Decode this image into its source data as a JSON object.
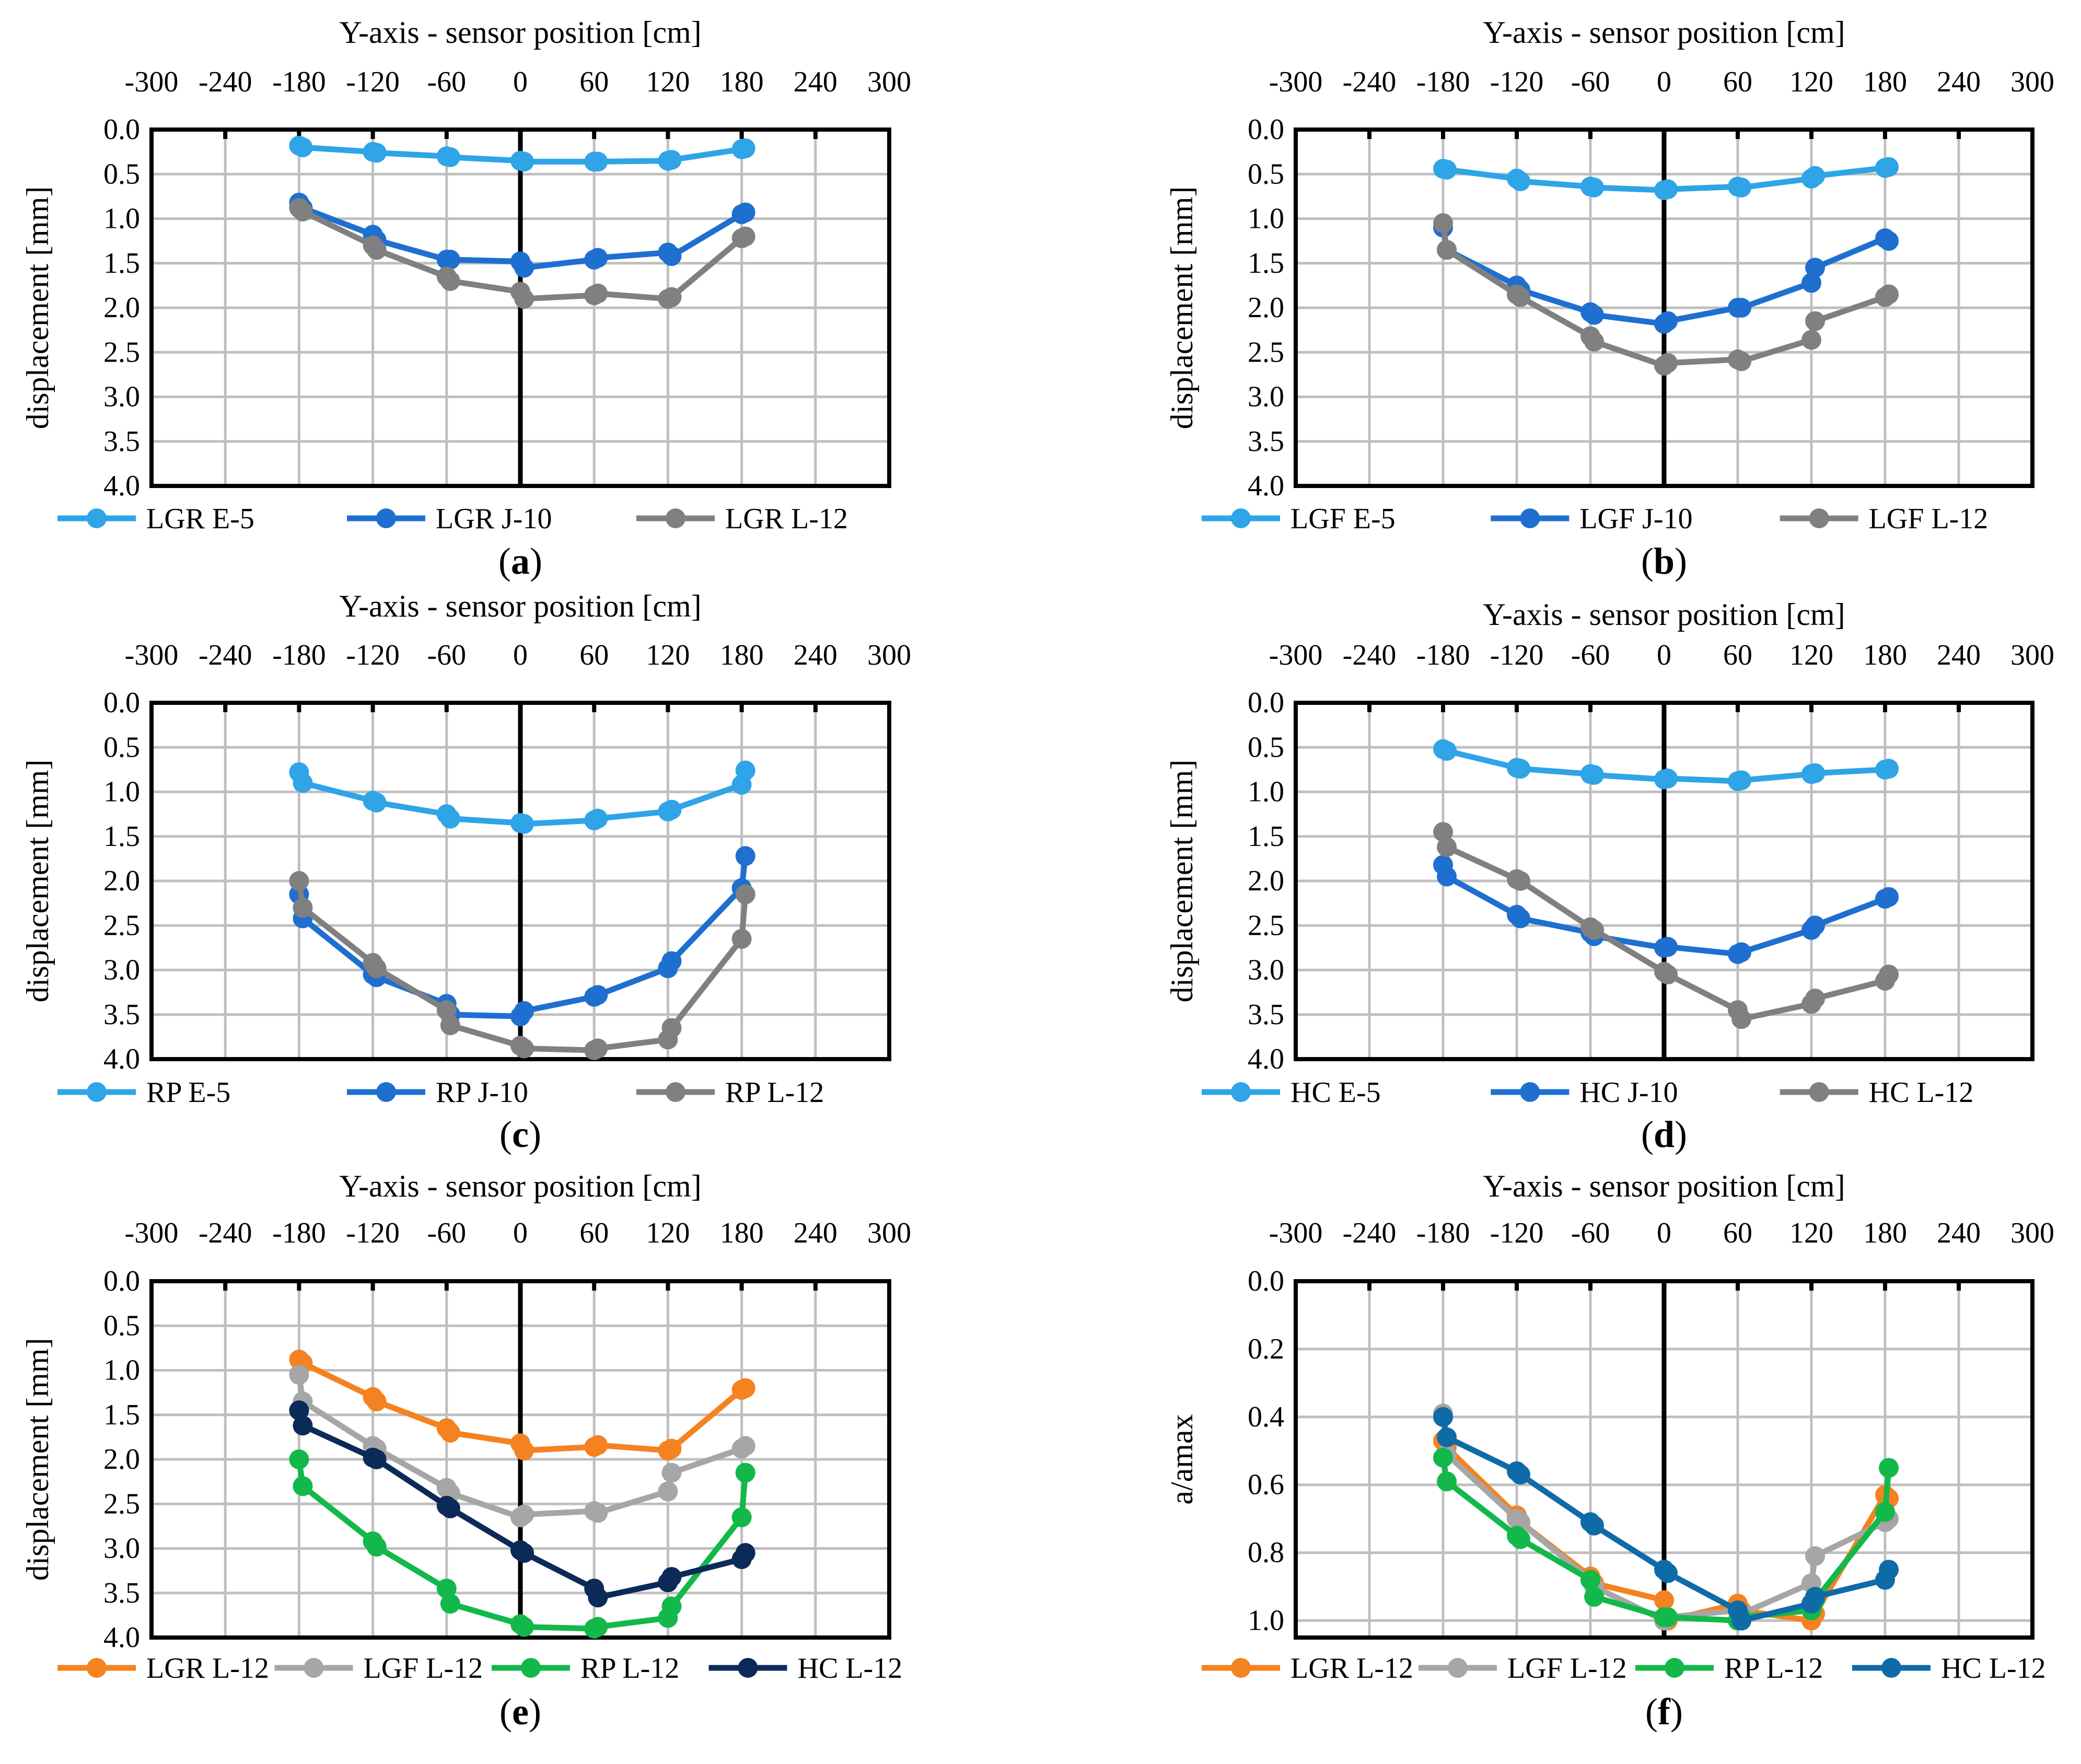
{
  "colors": {
    "light_blue": "#2fa4e7",
    "mid_blue": "#1f6fd0",
    "gray": "#808080",
    "orange": "#f58220",
    "light_gray": "#a6a6a6",
    "green": "#12b84a",
    "navy": "#0b2a57",
    "teal_blue": "#0f6ba8"
  },
  "chart_data": [
    {
      "type": "line",
      "panel": "a",
      "caption": "(a)",
      "caption_letter": "a",
      "title": "Y-axis - sensor position [cm]",
      "ylabel": "displacement [mm]",
      "xlim": [
        -300,
        300
      ],
      "ylim": [
        4.0,
        0.0
      ],
      "y_inverted": true,
      "xticks": [
        "-300",
        "-240",
        "-180",
        "-120",
        "-60",
        "0",
        "60",
        "120",
        "180",
        "240",
        "300"
      ],
      "yticks": [
        "0.0",
        "0.5",
        "1.0",
        "1.5",
        "2.0",
        "2.5",
        "3.0",
        "3.5",
        "4.0"
      ],
      "legend_position": "bottom",
      "series": [
        {
          "name": "LGR E-5",
          "color_key": "light_blue",
          "x": [
            -180,
            -177,
            -120,
            -117,
            -60,
            -57,
            0,
            3,
            60,
            63,
            120,
            123,
            180,
            183
          ],
          "values": [
            0.18,
            0.2,
            0.25,
            0.26,
            0.3,
            0.31,
            0.35,
            0.36,
            0.36,
            0.36,
            0.35,
            0.34,
            0.22,
            0.21
          ]
        },
        {
          "name": "LGR J-10",
          "color_key": "mid_blue",
          "x": [
            -180,
            -177,
            -120,
            -117,
            -60,
            -57,
            0,
            3,
            60,
            63,
            120,
            123,
            180,
            183
          ],
          "values": [
            0.82,
            0.88,
            1.18,
            1.24,
            1.46,
            1.46,
            1.48,
            1.55,
            1.46,
            1.44,
            1.38,
            1.42,
            0.95,
            0.93
          ]
        },
        {
          "name": "LGR L-12",
          "color_key": "gray",
          "x": [
            -180,
            -177,
            -120,
            -117,
            -60,
            -57,
            0,
            3,
            60,
            63,
            120,
            123,
            180,
            183
          ],
          "values": [
            0.88,
            0.92,
            1.3,
            1.35,
            1.65,
            1.7,
            1.82,
            1.9,
            1.86,
            1.84,
            1.9,
            1.88,
            1.22,
            1.2
          ]
        }
      ]
    },
    {
      "type": "line",
      "panel": "b",
      "caption": "(b)",
      "caption_letter": "b",
      "title": "Y-axis - sensor position [cm]",
      "ylabel": "displacement [mm]",
      "xlim": [
        -300,
        300
      ],
      "ylim": [
        4.0,
        0.0
      ],
      "y_inverted": true,
      "xticks": [
        "-300",
        "-240",
        "-180",
        "-120",
        "-60",
        "0",
        "60",
        "120",
        "180",
        "240",
        "300"
      ],
      "yticks": [
        "0.0",
        "0.5",
        "1.0",
        "1.5",
        "2.0",
        "2.5",
        "3.0",
        "3.5",
        "4.0"
      ],
      "legend_position": "bottom",
      "series": [
        {
          "name": "LGF E-5",
          "color_key": "light_blue",
          "x": [
            -180,
            -177,
            -120,
            -117,
            -60,
            -57,
            0,
            3,
            60,
            63,
            120,
            123,
            180,
            183
          ],
          "values": [
            0.44,
            0.45,
            0.55,
            0.58,
            0.64,
            0.65,
            0.68,
            0.67,
            0.64,
            0.65,
            0.55,
            0.52,
            0.43,
            0.42
          ]
        },
        {
          "name": "LGF J-10",
          "color_key": "mid_blue",
          "x": [
            -180,
            -177,
            -120,
            -117,
            -60,
            -57,
            0,
            3,
            60,
            63,
            120,
            123,
            180,
            183
          ],
          "values": [
            1.1,
            1.35,
            1.75,
            1.8,
            2.05,
            2.08,
            2.18,
            2.15,
            2.0,
            2.0,
            1.72,
            1.55,
            1.22,
            1.25
          ]
        },
        {
          "name": "LGF L-12",
          "color_key": "gray",
          "x": [
            -180,
            -177,
            -120,
            -117,
            -60,
            -57,
            0,
            3,
            60,
            63,
            120,
            123,
            180,
            183
          ],
          "values": [
            1.05,
            1.35,
            1.85,
            1.88,
            2.32,
            2.38,
            2.65,
            2.62,
            2.58,
            2.6,
            2.36,
            2.15,
            1.88,
            1.85
          ]
        }
      ]
    },
    {
      "type": "line",
      "panel": "c",
      "caption": "(c)",
      "caption_letter": "c",
      "title": "Y-axis - sensor position [cm]",
      "ylabel": "displacement [mm]",
      "xlim": [
        -300,
        300
      ],
      "ylim": [
        4.0,
        0.0
      ],
      "y_inverted": true,
      "xticks": [
        "-300",
        "-240",
        "-180",
        "-120",
        "-60",
        "0",
        "60",
        "120",
        "180",
        "240",
        "300"
      ],
      "yticks": [
        "0.0",
        "0.5",
        "1.0",
        "1.5",
        "2.0",
        "2.5",
        "3.0",
        "3.5",
        "4.0"
      ],
      "legend_position": "bottom",
      "series": [
        {
          "name": "RP E-5",
          "color_key": "light_blue",
          "x": [
            -180,
            -177,
            -120,
            -117,
            -60,
            -57,
            0,
            3,
            60,
            63,
            120,
            123,
            180,
            183
          ],
          "values": [
            0.78,
            0.9,
            1.1,
            1.12,
            1.25,
            1.3,
            1.35,
            1.36,
            1.32,
            1.3,
            1.22,
            1.2,
            0.92,
            0.76
          ]
        },
        {
          "name": "RP J-10",
          "color_key": "mid_blue",
          "x": [
            -180,
            -177,
            -120,
            -117,
            -60,
            -57,
            0,
            3,
            60,
            63,
            120,
            123,
            180,
            183
          ],
          "values": [
            2.15,
            2.42,
            3.05,
            3.08,
            3.38,
            3.5,
            3.52,
            3.46,
            3.3,
            3.28,
            2.98,
            2.9,
            2.08,
            1.72
          ]
        },
        {
          "name": "RP L-12",
          "color_key": "gray",
          "x": [
            -180,
            -177,
            -120,
            -117,
            -60,
            -57,
            0,
            3,
            60,
            63,
            120,
            123,
            180,
            183
          ],
          "values": [
            2.0,
            2.3,
            2.92,
            2.98,
            3.45,
            3.62,
            3.85,
            3.88,
            3.9,
            3.88,
            3.78,
            3.65,
            2.65,
            2.15
          ]
        }
      ]
    },
    {
      "type": "line",
      "panel": "d",
      "caption": "(d)",
      "caption_letter": "d",
      "title": "Y-axis - sensor position [cm]",
      "ylabel": "displacement [mm]",
      "xlim": [
        -300,
        300
      ],
      "ylim": [
        4.0,
        0.0
      ],
      "y_inverted": true,
      "xticks": [
        "-300",
        "-240",
        "-180",
        "-120",
        "-60",
        "0",
        "60",
        "120",
        "180",
        "240",
        "300"
      ],
      "yticks": [
        "0.0",
        "0.5",
        "1.0",
        "1.5",
        "2.0",
        "2.5",
        "3.0",
        "3.5",
        "4.0"
      ],
      "legend_position": "bottom",
      "series": [
        {
          "name": "HC E-5",
          "color_key": "light_blue",
          "x": [
            -180,
            -177,
            -120,
            -117,
            -60,
            -57,
            0,
            3,
            60,
            63,
            120,
            123,
            180,
            183
          ],
          "values": [
            0.52,
            0.54,
            0.73,
            0.74,
            0.8,
            0.81,
            0.86,
            0.85,
            0.88,
            0.87,
            0.8,
            0.79,
            0.75,
            0.74
          ]
        },
        {
          "name": "HC J-10",
          "color_key": "mid_blue",
          "x": [
            -180,
            -177,
            -120,
            -117,
            -60,
            -57,
            0,
            3,
            60,
            63,
            120,
            123,
            180,
            183
          ],
          "values": [
            1.82,
            1.95,
            2.38,
            2.42,
            2.58,
            2.62,
            2.75,
            2.74,
            2.82,
            2.8,
            2.55,
            2.5,
            2.2,
            2.18
          ]
        },
        {
          "name": "HC L-12",
          "color_key": "gray",
          "x": [
            -180,
            -177,
            -120,
            -117,
            -60,
            -57,
            0,
            3,
            60,
            63,
            120,
            123,
            180,
            183
          ],
          "values": [
            1.45,
            1.62,
            1.98,
            2.0,
            2.52,
            2.55,
            3.02,
            3.05,
            3.45,
            3.55,
            3.38,
            3.32,
            3.12,
            3.05
          ]
        }
      ]
    },
    {
      "type": "line",
      "panel": "e",
      "caption": "(e)",
      "caption_letter": "e",
      "title": "Y-axis - sensor position [cm]",
      "ylabel": "displacement [mm]",
      "xlim": [
        -300,
        300
      ],
      "ylim": [
        4.0,
        0.0
      ],
      "y_inverted": true,
      "xticks": [
        "-300",
        "-240",
        "-180",
        "-120",
        "-60",
        "0",
        "60",
        "120",
        "180",
        "240",
        "300"
      ],
      "yticks": [
        "0.0",
        "0.5",
        "1.0",
        "1.5",
        "2.0",
        "2.5",
        "3.0",
        "3.5",
        "4.0"
      ],
      "legend_position": "bottom",
      "series": [
        {
          "name": "LGR L-12",
          "color_key": "orange",
          "x": [
            -180,
            -177,
            -120,
            -117,
            -60,
            -57,
            0,
            3,
            60,
            63,
            120,
            123,
            180,
            183
          ],
          "values": [
            0.88,
            0.92,
            1.3,
            1.35,
            1.65,
            1.7,
            1.82,
            1.9,
            1.86,
            1.84,
            1.9,
            1.88,
            1.22,
            1.2
          ]
        },
        {
          "name": "LGF L-12",
          "color_key": "light_gray",
          "x": [
            -180,
            -177,
            -120,
            -117,
            -60,
            -57,
            0,
            3,
            60,
            63,
            120,
            123,
            180,
            183
          ],
          "values": [
            1.05,
            1.35,
            1.85,
            1.88,
            2.32,
            2.38,
            2.65,
            2.62,
            2.58,
            2.6,
            2.36,
            2.15,
            1.88,
            1.85
          ]
        },
        {
          "name": "RP L-12",
          "color_key": "green",
          "x": [
            -180,
            -177,
            -120,
            -117,
            -60,
            -57,
            0,
            3,
            60,
            63,
            120,
            123,
            180,
            183
          ],
          "values": [
            2.0,
            2.3,
            2.92,
            2.98,
            3.45,
            3.62,
            3.85,
            3.88,
            3.9,
            3.88,
            3.78,
            3.65,
            2.65,
            2.15
          ]
        },
        {
          "name": "HC L-12",
          "color_key": "navy",
          "x": [
            -180,
            -177,
            -120,
            -117,
            -60,
            -57,
            0,
            3,
            60,
            63,
            120,
            123,
            180,
            183
          ],
          "values": [
            1.45,
            1.62,
            1.98,
            2.0,
            2.52,
            2.55,
            3.02,
            3.05,
            3.45,
            3.55,
            3.38,
            3.32,
            3.12,
            3.05
          ]
        }
      ]
    },
    {
      "type": "line",
      "panel": "f",
      "caption": "(f)",
      "caption_letter": "f",
      "title": "Y-axis - sensor position [cm]",
      "ylabel": "a/amax",
      "xlim": [
        -300,
        300
      ],
      "ylim": [
        1.05,
        0.0
      ],
      "y_inverted": true,
      "xticks": [
        "-300",
        "-240",
        "-180",
        "-120",
        "-60",
        "0",
        "60",
        "120",
        "180",
        "240",
        "300"
      ],
      "yticks": [
        "0.0",
        "0.2",
        "0.4",
        "0.6",
        "0.8",
        "1.0"
      ],
      "ytick_values": [
        0.0,
        0.2,
        0.4,
        0.6,
        0.8,
        1.0
      ],
      "legend_position": "bottom",
      "series": [
        {
          "name": "LGR L-12",
          "color_key": "orange",
          "x": [
            -180,
            -177,
            -120,
            -117,
            -60,
            -57,
            0,
            3,
            60,
            63,
            120,
            123,
            180,
            183
          ],
          "values": [
            0.47,
            0.49,
            0.69,
            0.71,
            0.87,
            0.89,
            0.94,
            1.0,
            0.95,
            0.97,
            1.0,
            0.98,
            0.63,
            0.64
          ]
        },
        {
          "name": "LGF L-12",
          "color_key": "light_gray",
          "x": [
            -180,
            -177,
            -120,
            -117,
            -60,
            -57,
            0,
            3,
            60,
            63,
            120,
            123,
            180,
            183
          ],
          "values": [
            0.39,
            0.51,
            0.7,
            0.71,
            0.88,
            0.9,
            1.0,
            0.99,
            0.97,
            0.98,
            0.89,
            0.81,
            0.71,
            0.7
          ]
        },
        {
          "name": "RP L-12",
          "color_key": "green",
          "x": [
            -180,
            -177,
            -120,
            -117,
            -60,
            -57,
            0,
            3,
            60,
            63,
            120,
            123,
            180,
            183
          ],
          "values": [
            0.52,
            0.59,
            0.75,
            0.76,
            0.88,
            0.93,
            0.99,
            0.99,
            1.0,
            0.99,
            0.97,
            0.94,
            0.68,
            0.55
          ]
        },
        {
          "name": "HC L-12",
          "color_key": "teal_blue",
          "x": [
            -180,
            -177,
            -120,
            -117,
            -60,
            -57,
            0,
            3,
            60,
            63,
            120,
            123,
            180,
            183
          ],
          "values": [
            0.4,
            0.46,
            0.56,
            0.57,
            0.71,
            0.72,
            0.85,
            0.86,
            0.97,
            1.0,
            0.95,
            0.93,
            0.88,
            0.85
          ]
        }
      ]
    }
  ]
}
